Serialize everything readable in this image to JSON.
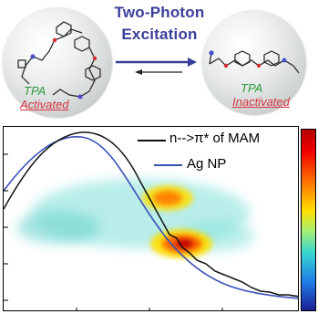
{
  "header": {
    "line1": "Two-Photon",
    "line2": "Excitation"
  },
  "left_state": {
    "tpa": "TPA",
    "status": "Activated"
  },
  "right_state": {
    "tpa": "TPA",
    "status": "Inactivated"
  },
  "legend": {
    "entries": [
      {
        "label": "n-->π* of MAM",
        "color": "#000000"
      },
      {
        "label": "Ag NP",
        "color": "#3b4fb8"
      }
    ]
  },
  "colors": {
    "title": "#3a3f9a",
    "tpa_green": "#2f9a3a",
    "status_red": "#d8343d"
  },
  "colorbar": {
    "top_color": "#b40000",
    "bottom_color": "#1c1d94"
  }
}
